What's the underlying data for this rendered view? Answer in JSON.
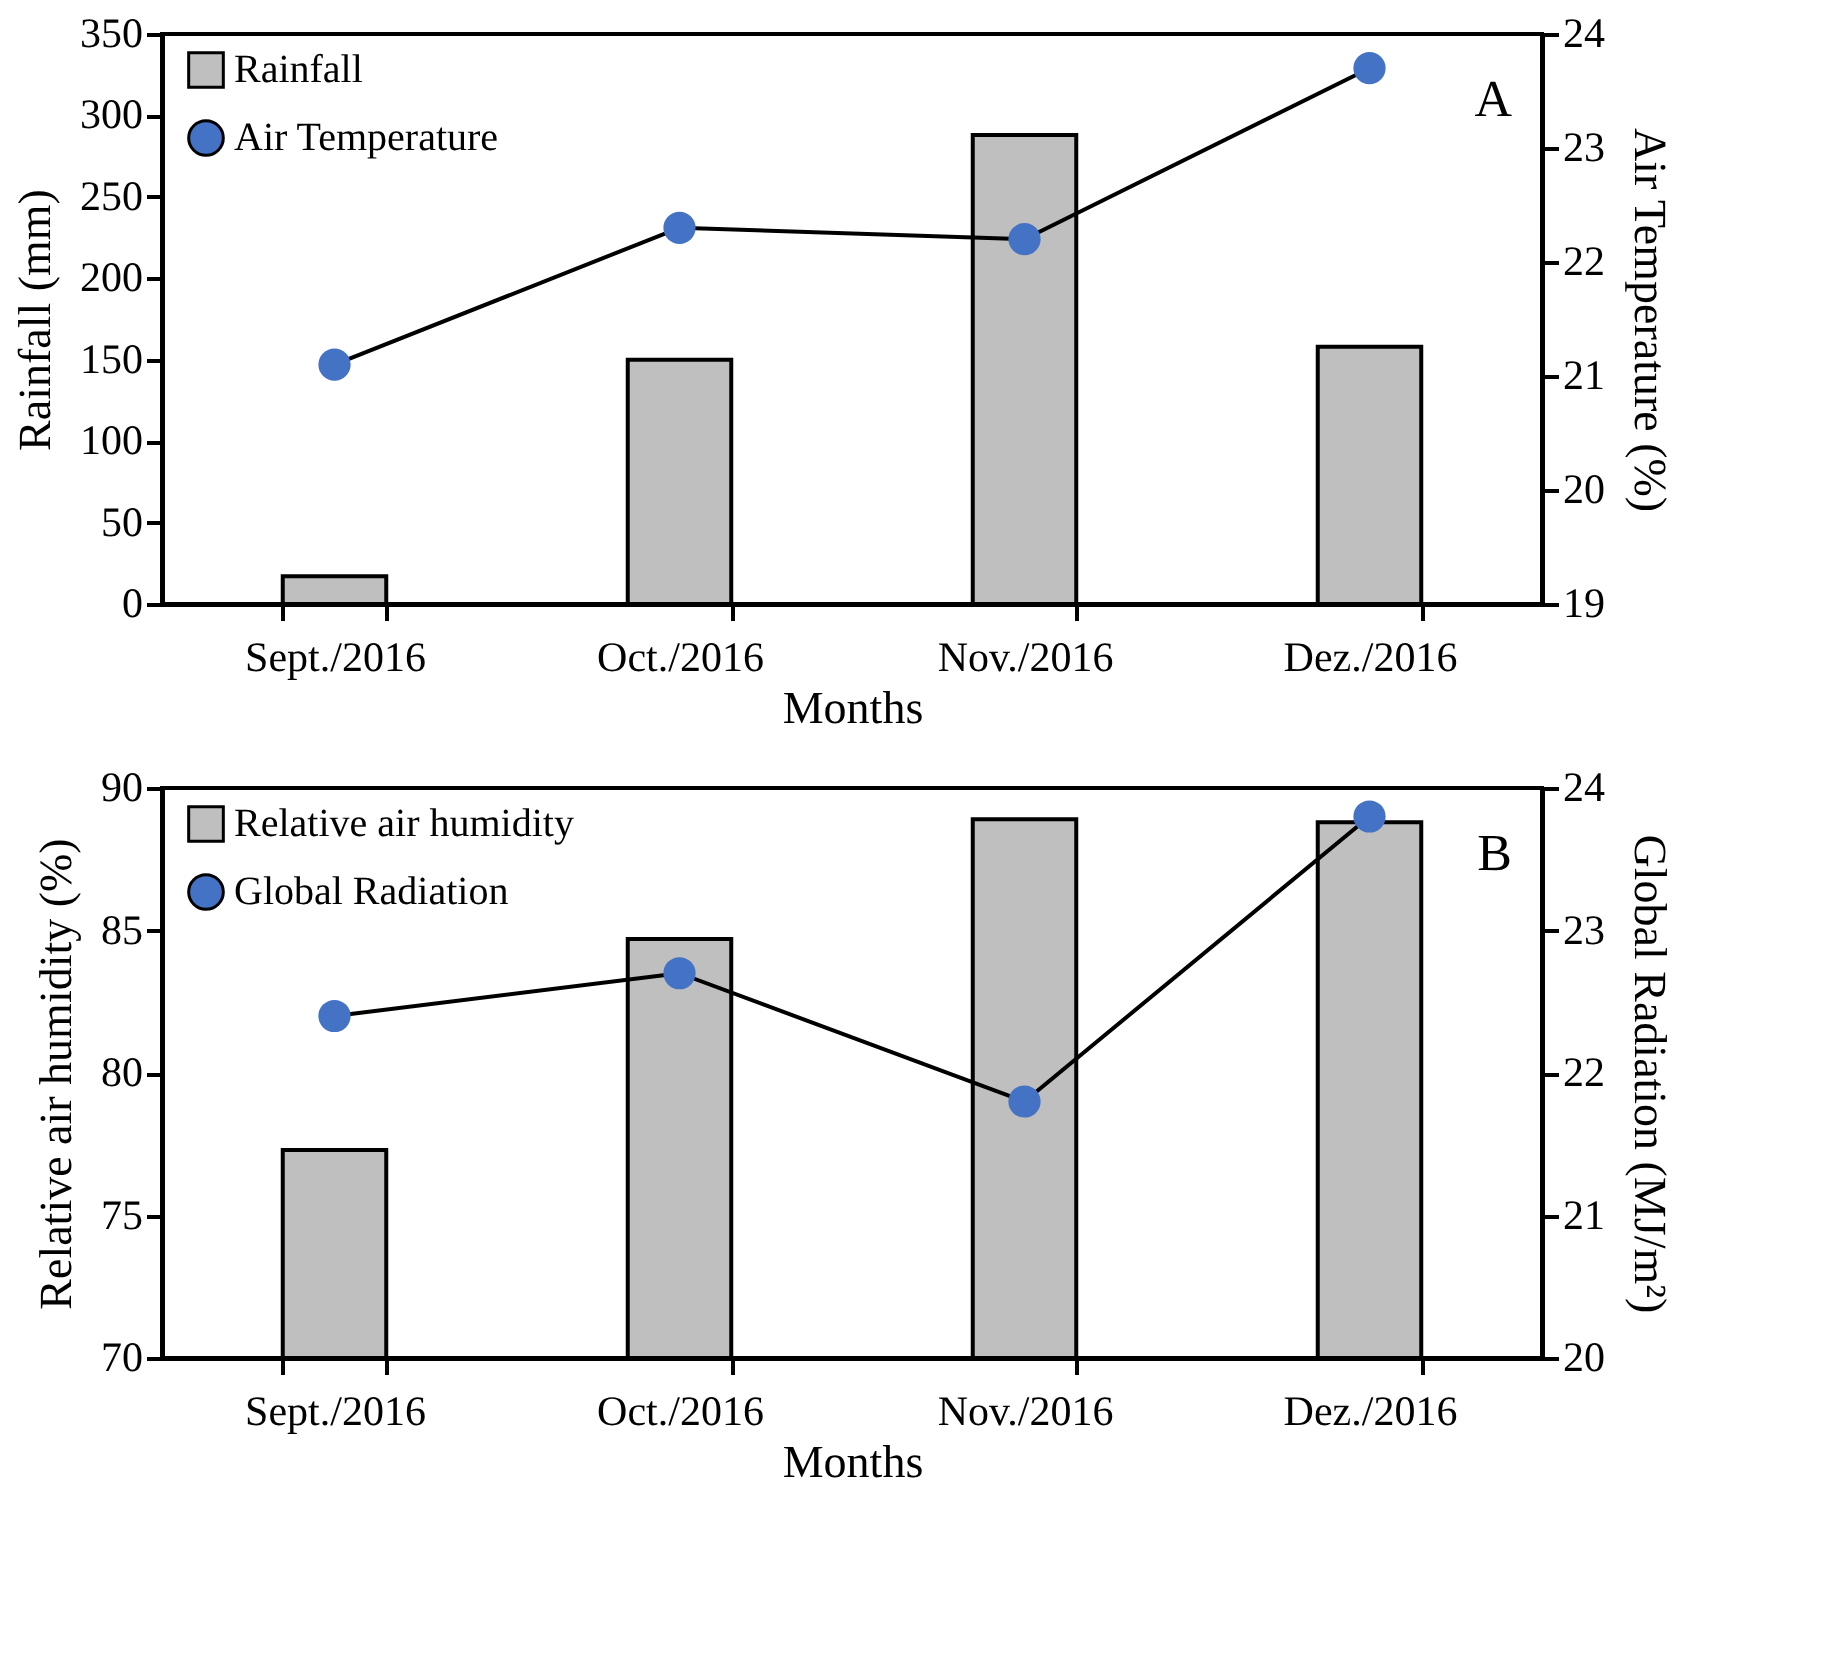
{
  "chart_data": [
    {
      "type": "bar",
      "categories": [
        "Sept./2016",
        "Oct./2016",
        "Nov./2016",
        "Dez./2016"
      ],
      "series": [
        {
          "name": "Rainfall",
          "type": "bar",
          "color": "#bfbfbf",
          "values": [
            17,
            150,
            288,
            158
          ]
        },
        {
          "name": "Air Temperature",
          "type": "line",
          "axis": "y2",
          "color": "#4472c4",
          "values": [
            21.1,
            22.3,
            22.2,
            23.7
          ]
        }
      ],
      "xlabel": "Months",
      "ylabel": "Rainfall (mm)",
      "y2label": "Air Temperature (%)",
      "ylim": [
        0,
        350
      ],
      "yticks": [
        0,
        50,
        100,
        150,
        200,
        250,
        300,
        350
      ],
      "y2lim": [
        19,
        24
      ],
      "y2ticks": [
        19,
        20,
        21,
        22,
        23,
        24
      ],
      "annotations": [
        "A"
      ],
      "legend": "top left",
      "marker": "circle",
      "grid": false
    },
    {
      "type": "bar",
      "categories": [
        "Sept./2016",
        "Oct./2016",
        "Nov./2016",
        "Dez./2016"
      ],
      "series": [
        {
          "name": "Relative air humidity",
          "type": "bar",
          "color": "#bfbfbf",
          "values": [
            77.3,
            84.7,
            88.9,
            88.8
          ]
        },
        {
          "name": "Global Radiation",
          "type": "line",
          "axis": "y2",
          "color": "#4472c4",
          "values": [
            22.4,
            22.7,
            21.8,
            23.8
          ]
        }
      ],
      "xlabel": "Months",
      "ylabel": "Relative air humidity (%)",
      "y2label": "Global Radiation (MJ/m²)",
      "ylim": [
        70,
        90
      ],
      "yticks": [
        70,
        75,
        80,
        85,
        90
      ],
      "y2lim": [
        20,
        24
      ],
      "y2ticks": [
        20,
        21,
        22,
        23,
        24
      ],
      "annotations": [
        "B"
      ],
      "legend": "top left",
      "marker": "circle",
      "grid": false
    }
  ]
}
